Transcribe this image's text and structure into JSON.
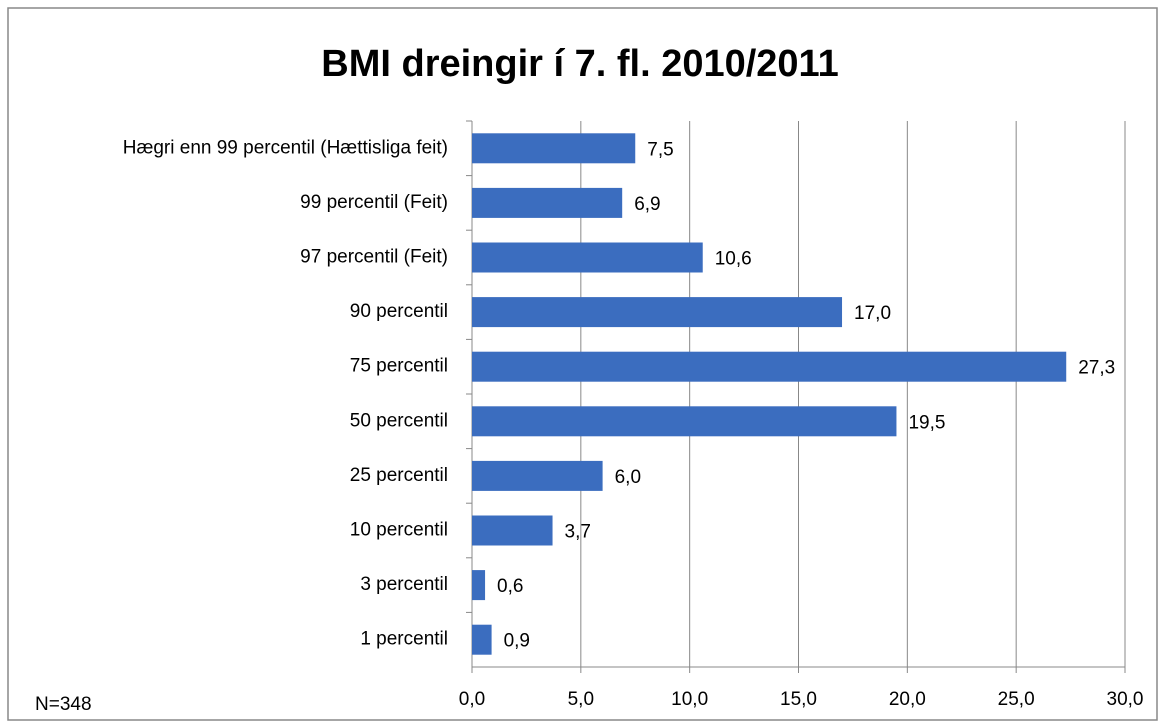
{
  "chart_data": {
    "type": "bar",
    "orientation": "horizontal",
    "title": "BMI dreingir í 7. fl. 2010/2011",
    "annotation": "N=348",
    "categories": [
      "Hægri enn 99 percentil (Hættisliga feit)",
      "99 percentil (Feit)",
      "97 percentil (Feit)",
      "90 percentil",
      "75 percentil",
      "50 percentil",
      "25 percentil",
      "10 percentil",
      "3 percentil",
      "1 percentil"
    ],
    "values": [
      7.5,
      6.9,
      10.6,
      17.0,
      27.3,
      19.5,
      6.0,
      3.7,
      0.6,
      0.9
    ],
    "value_labels": [
      "7,5",
      "6,9",
      "10,6",
      "17,0",
      "27,3",
      "19,5",
      "6,0",
      "3,7",
      "0,6",
      "0,9"
    ],
    "color": "#3b6dbf",
    "xlim": [
      0,
      30
    ],
    "xticks": [
      {
        "value": 0,
        "label": "0,0"
      },
      {
        "value": 5,
        "label": "5,0"
      },
      {
        "value": 10,
        "label": "10,0"
      },
      {
        "value": 15,
        "label": "15,0"
      },
      {
        "value": 20,
        "label": "20,0"
      },
      {
        "value": 25,
        "label": "25,0"
      },
      {
        "value": 30,
        "label": "30,0"
      }
    ],
    "grid": true
  }
}
